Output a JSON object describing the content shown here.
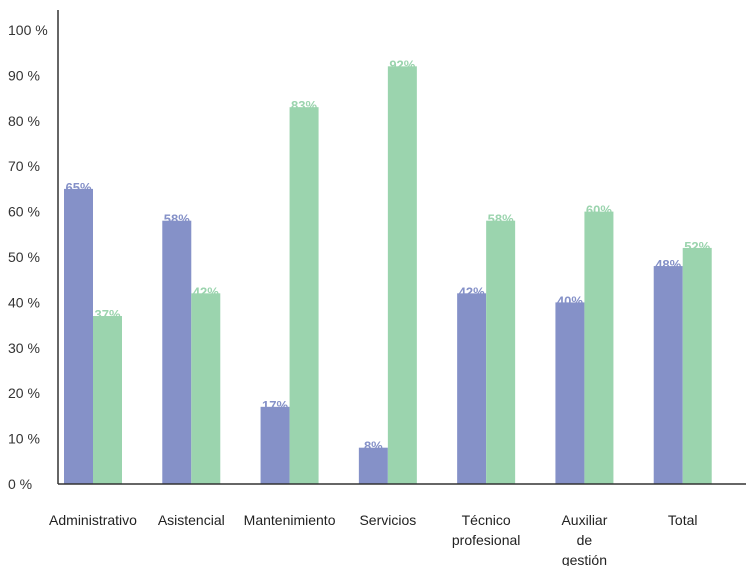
{
  "chart_data": {
    "type": "bar",
    "title": "",
    "xlabel": "",
    "ylabel": "",
    "ylim": [
      0,
      100
    ],
    "yticks": [
      0,
      10,
      20,
      30,
      40,
      50,
      60,
      70,
      80,
      90,
      100
    ],
    "ytick_labels": [
      "0 %",
      "10 %",
      "20 %",
      "30 %",
      "40 %",
      "50 %",
      "60 %",
      "70 %",
      "80 %",
      "90 %",
      "100 %"
    ],
    "categories": [
      [
        "Administrativo"
      ],
      [
        "Asistencial"
      ],
      [
        "Mantenimiento"
      ],
      [
        "Servicios"
      ],
      [
        "Técnico",
        "profesional"
      ],
      [
        "Auxiliar",
        "de",
        "gestión"
      ],
      [
        "Total"
      ]
    ],
    "series": [
      {
        "color": "#8591c8",
        "values": [
          65,
          58,
          17,
          8,
          42,
          40,
          48
        ],
        "value_labels": [
          "65%",
          "58%",
          "17%",
          "8%",
          "42%",
          "40%",
          "48%"
        ]
      },
      {
        "color": "#9bd4ae",
        "values": [
          37,
          42,
          83,
          92,
          58,
          60,
          52
        ],
        "value_labels": [
          "37%",
          "42%",
          "83%",
          "92%",
          "58%",
          "60%",
          "52%"
        ]
      }
    ],
    "grid": false,
    "legend": "none"
  }
}
